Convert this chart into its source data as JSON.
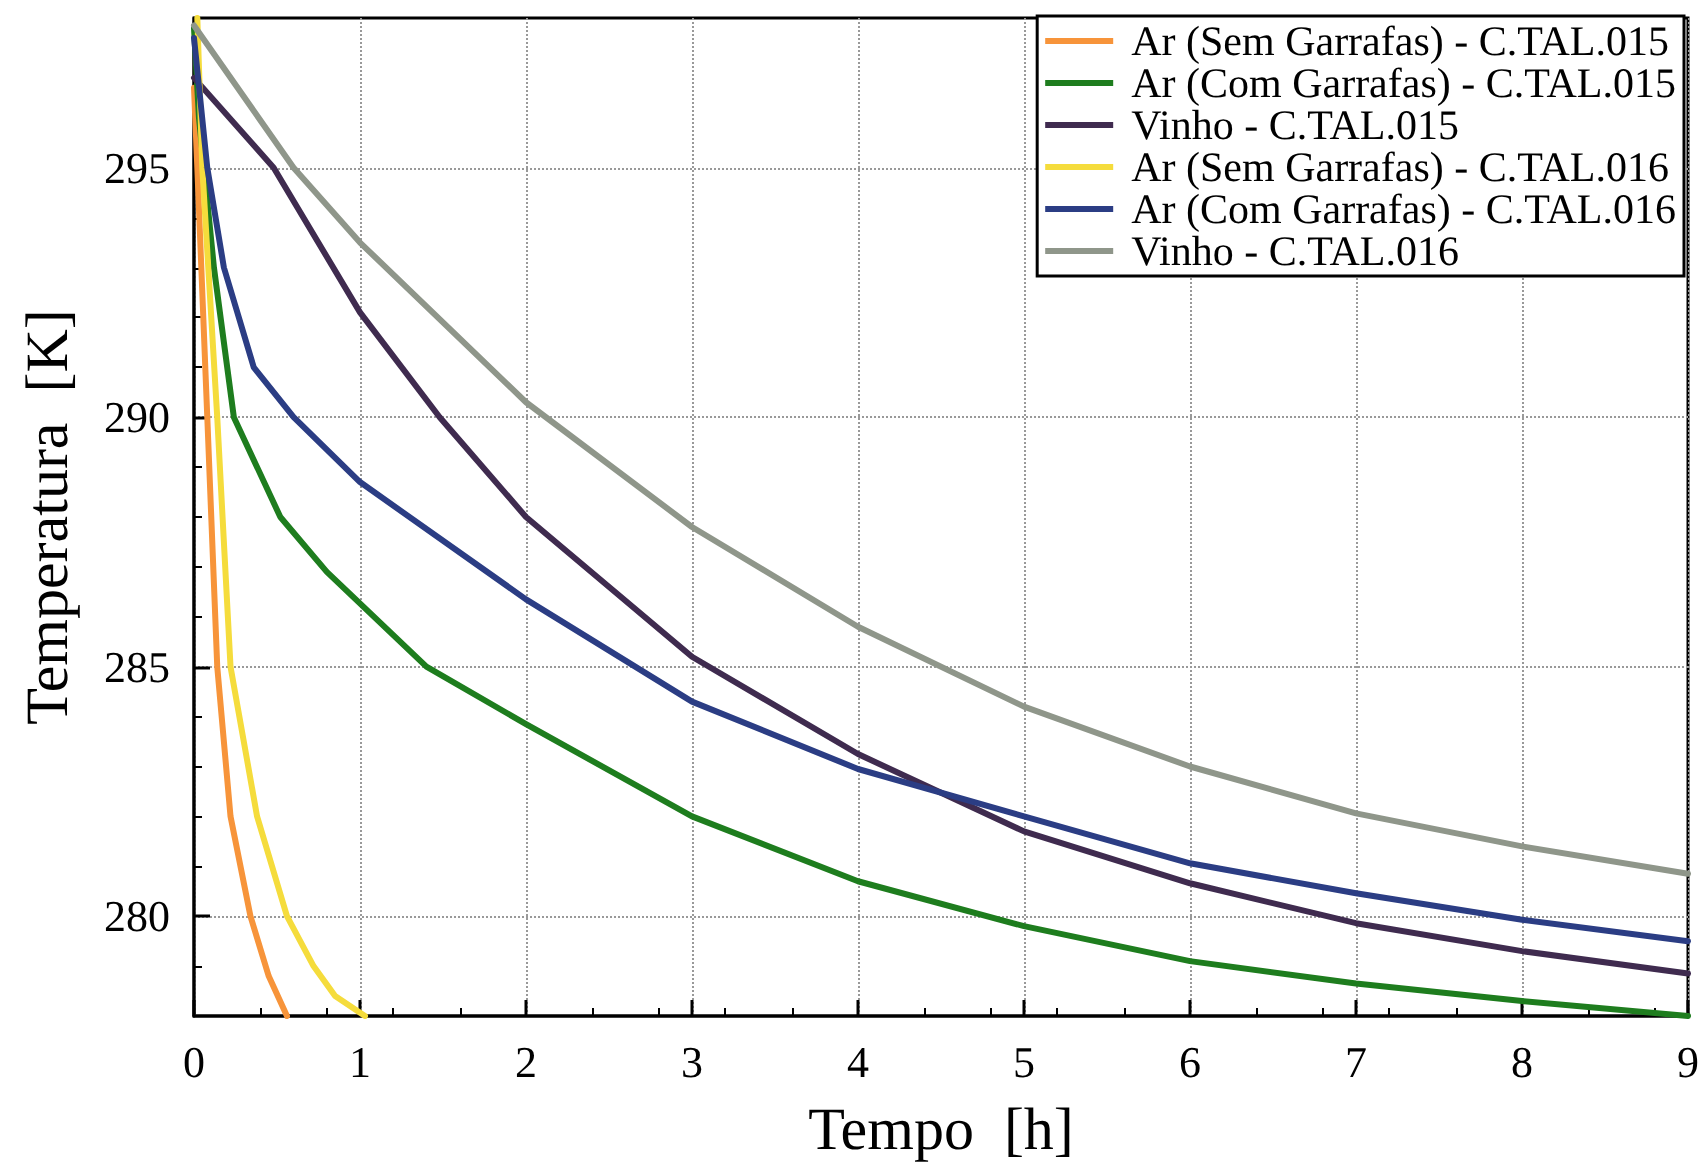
{
  "chart_data": {
    "type": "line",
    "xlabel": "Tempo  [h]",
    "ylabel": "Temperatura  [K]",
    "xlim": [
      0,
      9
    ],
    "ylim": [
      278,
      298
    ],
    "xticks": [
      0,
      1,
      2,
      3,
      4,
      5,
      6,
      7,
      8,
      9
    ],
    "yticks": [
      280,
      285,
      290,
      295
    ],
    "grid": true,
    "legend": "top right",
    "marker": "none",
    "line_style": "solid",
    "series": [
      {
        "name": "Ar (Sem Garrafas) - C.TAL.015",
        "color": "#f7943a",
        "x": [
          0,
          0.02,
          0.08,
          0.14,
          0.22,
          0.34,
          0.45,
          0.56
        ],
        "values": [
          296.6,
          295,
          290,
          285,
          282,
          280,
          278.8,
          278
        ]
      },
      {
        "name": "Ar (Com Garrafas) - C.TAL.015",
        "color": "#1e7d1e",
        "x": [
          0,
          0.03,
          0.06,
          0.12,
          0.24,
          0.52,
          0.8,
          1.4,
          2,
          3,
          4,
          5,
          6,
          7,
          8,
          9
        ],
        "values": [
          297.8,
          296,
          295,
          293,
          290,
          288,
          286.9,
          285,
          283.85,
          282,
          280.7,
          279.8,
          279.1,
          278.65,
          278.3,
          278
        ]
      },
      {
        "name": "Vinho - C.TAL.015",
        "color": "#3f2b4f",
        "x": [
          0,
          0.48,
          1,
          1.48,
          2,
          3,
          4,
          5,
          6,
          7,
          8,
          9
        ],
        "values": [
          296.8,
          295,
          292.1,
          290,
          288,
          285.2,
          283.25,
          281.7,
          280.66,
          279.86,
          279.3,
          278.85
        ]
      },
      {
        "name": "Ar (Sem Garrafas) - C.TAL.016",
        "color": "#f5dc3c",
        "x": [
          0.02,
          0.05,
          0.14,
          0.22,
          0.38,
          0.56,
          0.72,
          0.85,
          1.03
        ],
        "values": [
          298,
          295,
          290,
          285,
          282,
          280,
          279,
          278.4,
          278
        ]
      },
      {
        "name": "Ar (Com Garrafas) - C.TAL.016",
        "color": "#2b3d84",
        "x": [
          0,
          0.08,
          0.18,
          0.36,
          0.6,
          1,
          2,
          3,
          4,
          5,
          6,
          7,
          8,
          9
        ],
        "values": [
          297.6,
          295,
          293,
          291,
          290,
          288.7,
          286.35,
          284.3,
          282.95,
          282,
          281.06,
          280.46,
          279.93,
          279.5
        ]
      },
      {
        "name": "Vinho - C.TAL.016",
        "color": "#8f968a",
        "x": [
          0,
          0.6,
          1,
          2,
          3,
          4,
          5,
          6,
          7,
          8,
          9
        ],
        "values": [
          297.85,
          295,
          293.5,
          290.3,
          287.8,
          285.8,
          284.2,
          283,
          282.06,
          281.4,
          280.85
        ]
      }
    ]
  }
}
